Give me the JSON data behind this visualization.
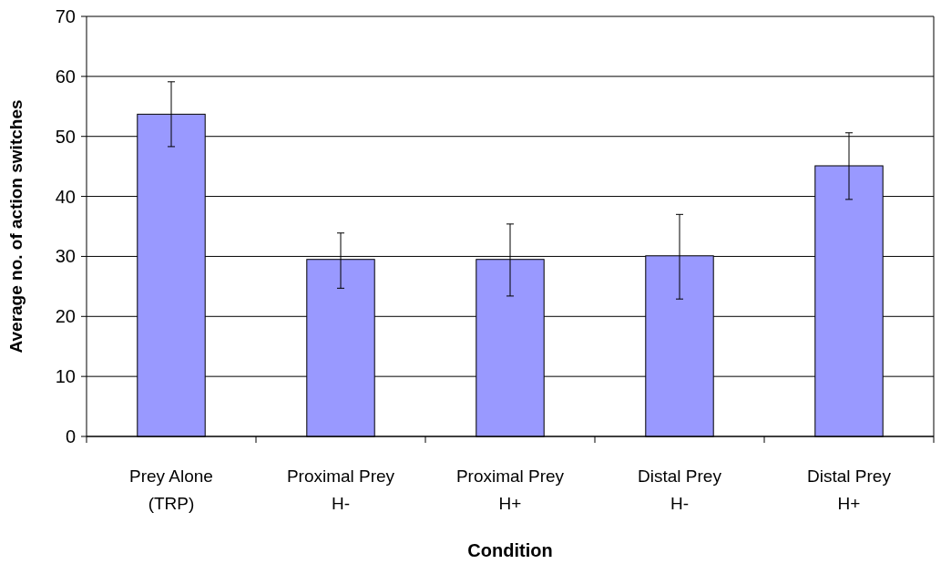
{
  "chart_data": {
    "type": "bar",
    "xlabel": "Condition",
    "ylabel": "Average no. of action switches",
    "categories": [
      "Prey Alone\n(TRP)",
      "Proximal Prey\nH-",
      "Proximal Prey\nH+",
      "Distal Prey\nH-",
      "Distal Prey\nH+"
    ],
    "values": [
      53.7,
      29.5,
      29.5,
      30.1,
      45.1
    ],
    "errors": [
      [
        48.3,
        59.1
      ],
      [
        24.7,
        33.9
      ],
      [
        23.4,
        35.4
      ],
      [
        22.9,
        37.0
      ],
      [
        39.5,
        50.6
      ]
    ],
    "color": "#9999ff",
    "ylim": [
      0,
      70
    ],
    "yticks": [
      0,
      10,
      20,
      30,
      40,
      50,
      60,
      70
    ],
    "grid": "y"
  }
}
